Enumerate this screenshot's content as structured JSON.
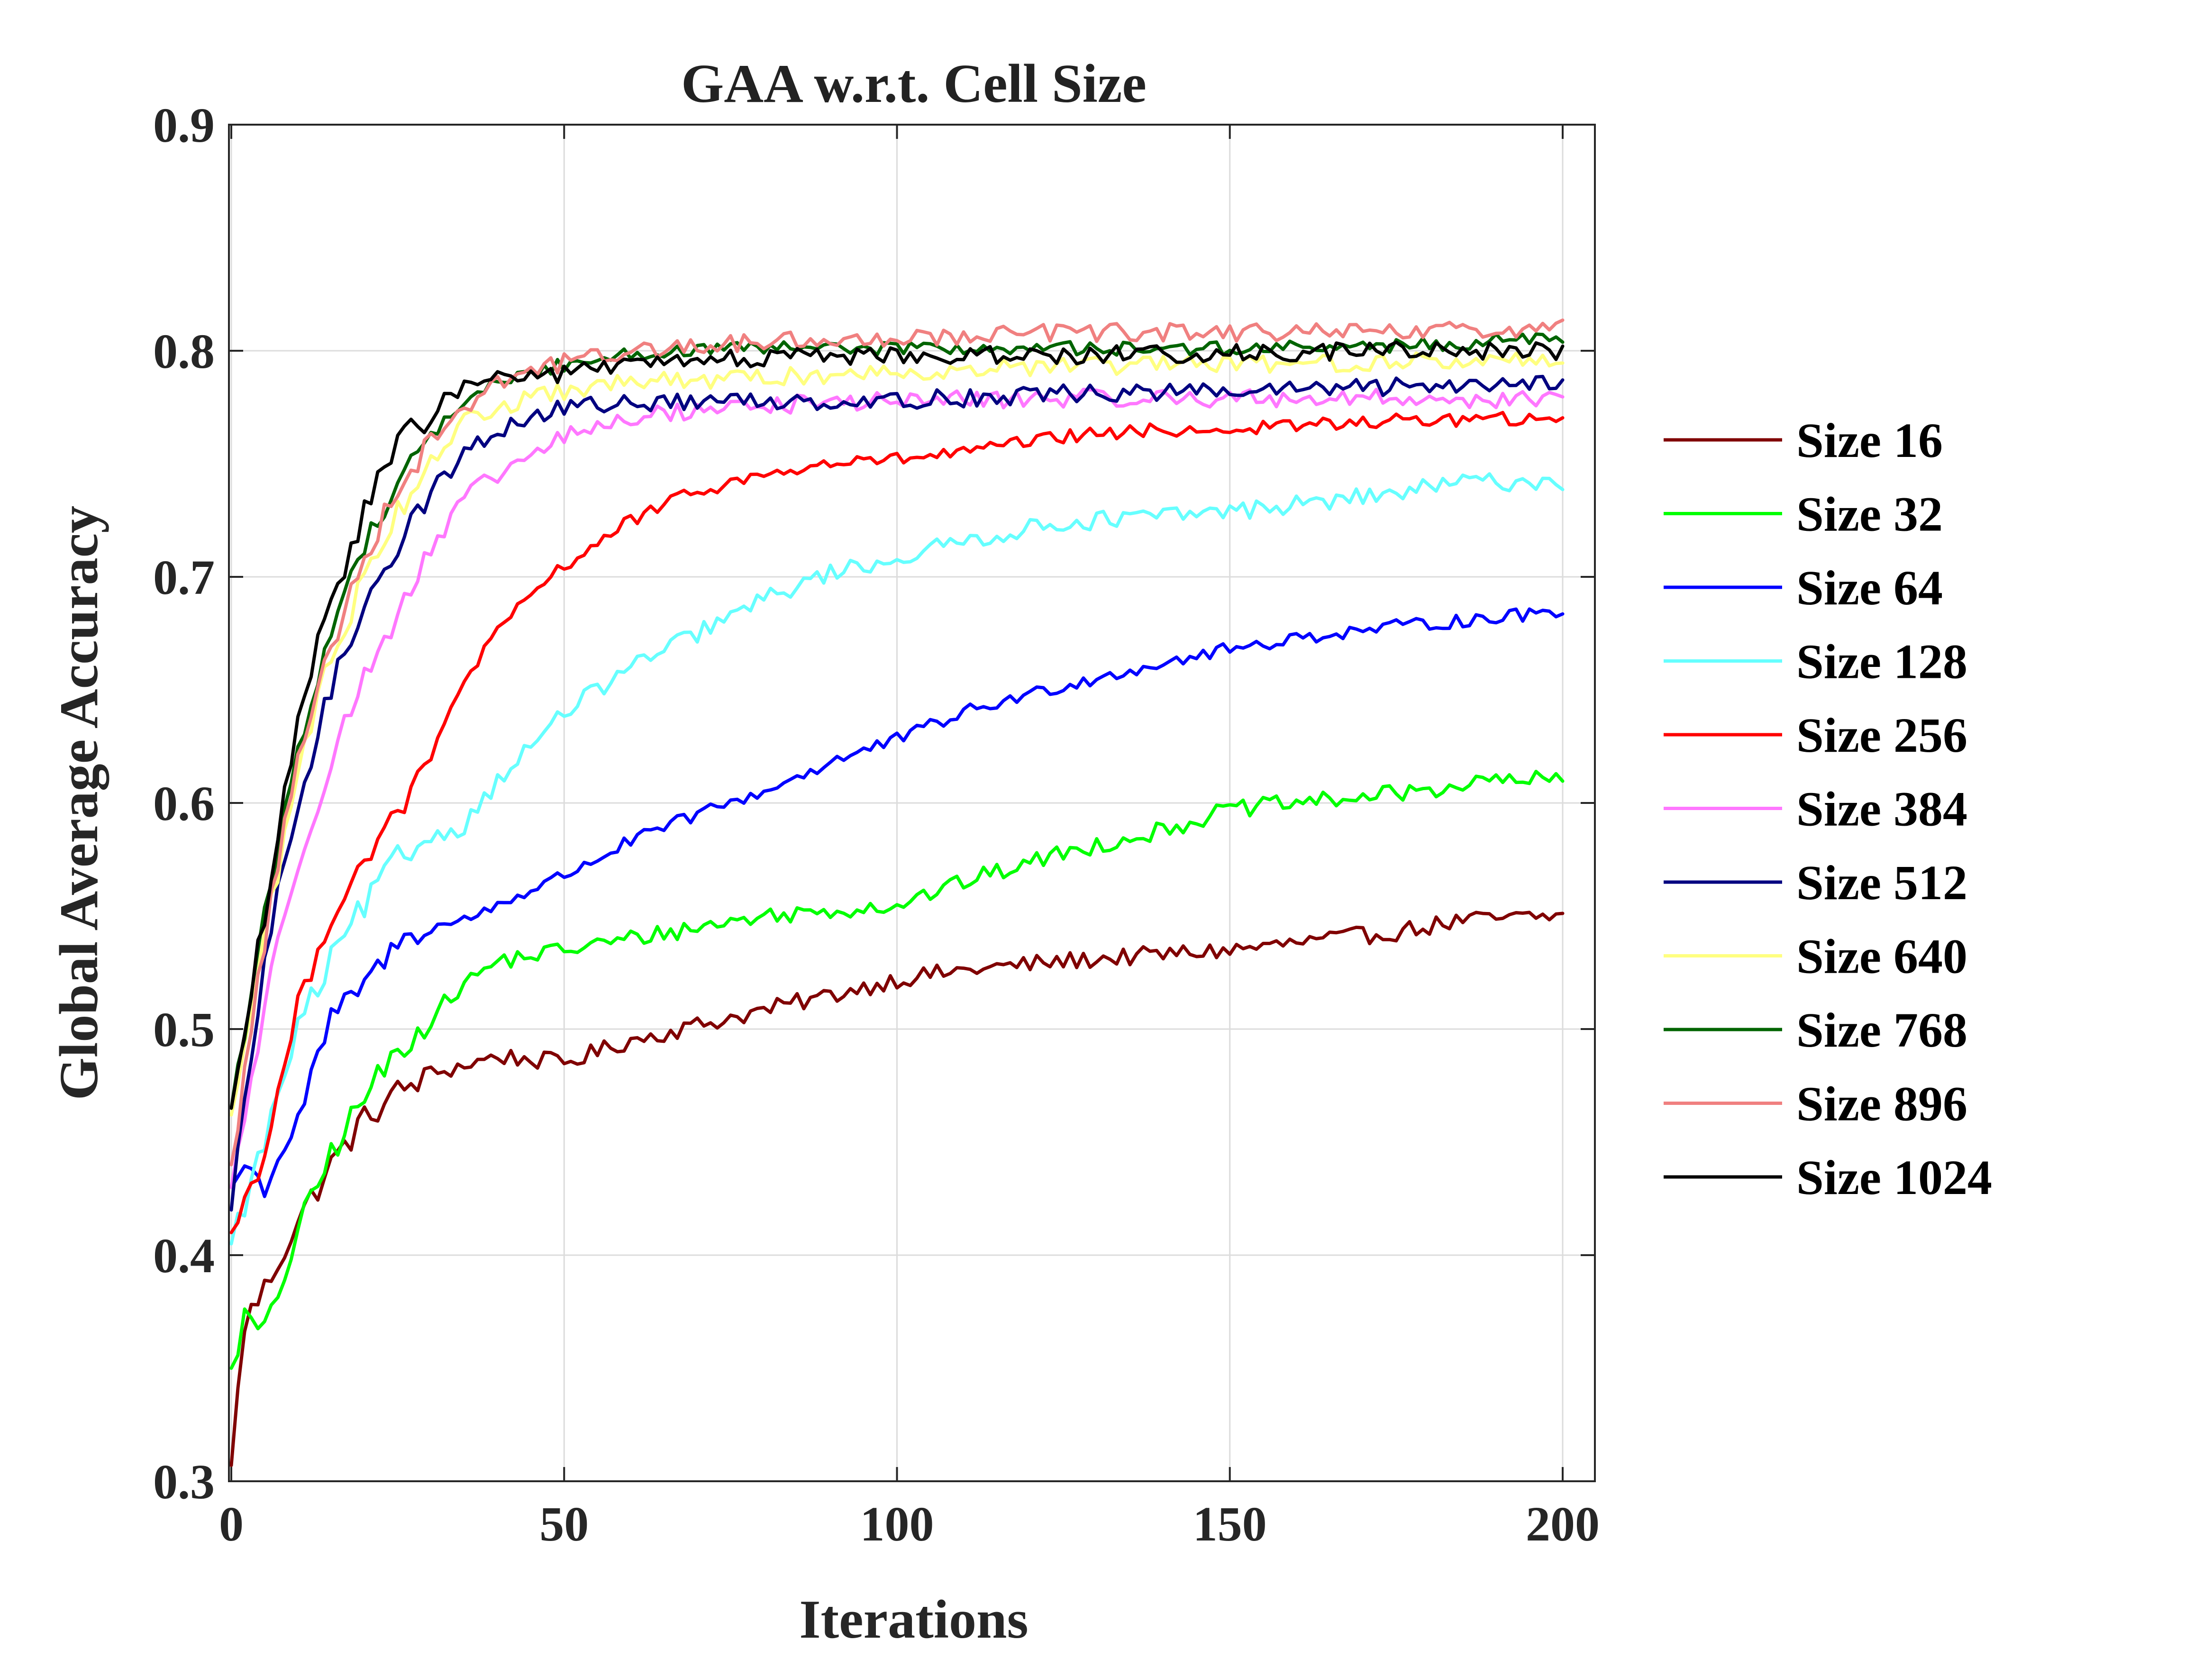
{
  "chart_data": {
    "type": "line",
    "title": "GAA w.r.t. Cell Size",
    "xlabel": "Iterations",
    "ylabel": "Global Average Accuracy",
    "xlim": [
      0,
      200
    ],
    "ylim": [
      0.3,
      0.9
    ],
    "xticks": [
      0,
      50,
      100,
      150,
      200
    ],
    "xtick_labels": [
      "0",
      "50",
      "100",
      "150",
      "200"
    ],
    "yticks": [
      0.3,
      0.4,
      0.5,
      0.6,
      0.7,
      0.8,
      0.9
    ],
    "ytick_labels": [
      "0.3",
      "0.4",
      "0.5",
      "0.6",
      "0.7",
      "0.8",
      "0.9"
    ],
    "grid": true,
    "legend_position": "right",
    "series": [
      {
        "name": "Size 16",
        "color": "#800000",
        "noise": 0.004,
        "points": [
          [
            0,
            0.307
          ],
          [
            2,
            0.37
          ],
          [
            5,
            0.385
          ],
          [
            10,
            0.415
          ],
          [
            15,
            0.44
          ],
          [
            20,
            0.46
          ],
          [
            25,
            0.472
          ],
          [
            30,
            0.48
          ],
          [
            40,
            0.488
          ],
          [
            50,
            0.485
          ],
          [
            60,
            0.495
          ],
          [
            75,
            0.505
          ],
          [
            90,
            0.515
          ],
          [
            100,
            0.522
          ],
          [
            110,
            0.526
          ],
          [
            125,
            0.53
          ],
          [
            140,
            0.533
          ],
          [
            150,
            0.535
          ],
          [
            160,
            0.538
          ],
          [
            175,
            0.543
          ],
          [
            185,
            0.548
          ],
          [
            200,
            0.55
          ]
        ]
      },
      {
        "name": "Size 32",
        "color": "#00ff00",
        "noise": 0.004,
        "points": [
          [
            0,
            0.35
          ],
          [
            2,
            0.372
          ],
          [
            5,
            0.365
          ],
          [
            10,
            0.41
          ],
          [
            15,
            0.445
          ],
          [
            20,
            0.47
          ],
          [
            25,
            0.49
          ],
          [
            30,
            0.505
          ],
          [
            35,
            0.52
          ],
          [
            40,
            0.53
          ],
          [
            50,
            0.535
          ],
          [
            60,
            0.54
          ],
          [
            70,
            0.545
          ],
          [
            80,
            0.55
          ],
          [
            100,
            0.555
          ],
          [
            110,
            0.565
          ],
          [
            125,
            0.578
          ],
          [
            140,
            0.588
          ],
          [
            150,
            0.597
          ],
          [
            160,
            0.6
          ],
          [
            175,
            0.604
          ],
          [
            190,
            0.61
          ],
          [
            200,
            0.61
          ]
        ]
      },
      {
        "name": "Size 64",
        "color": "#0000ff",
        "noise": 0.003,
        "points": [
          [
            0,
            0.43
          ],
          [
            2,
            0.44
          ],
          [
            5,
            0.43
          ],
          [
            10,
            0.46
          ],
          [
            15,
            0.505
          ],
          [
            20,
            0.52
          ],
          [
            25,
            0.538
          ],
          [
            30,
            0.545
          ],
          [
            35,
            0.548
          ],
          [
            40,
            0.555
          ],
          [
            50,
            0.568
          ],
          [
            60,
            0.583
          ],
          [
            70,
            0.595
          ],
          [
            80,
            0.605
          ],
          [
            90,
            0.618
          ],
          [
            100,
            0.628
          ],
          [
            110,
            0.64
          ],
          [
            125,
            0.652
          ],
          [
            140,
            0.662
          ],
          [
            150,
            0.668
          ],
          [
            160,
            0.673
          ],
          [
            175,
            0.678
          ],
          [
            190,
            0.682
          ],
          [
            200,
            0.685
          ]
        ]
      },
      {
        "name": "Size 128",
        "color": "#66ffff",
        "noise": 0.004,
        "points": [
          [
            0,
            0.405
          ],
          [
            5,
            0.45
          ],
          [
            10,
            0.5
          ],
          [
            15,
            0.53
          ],
          [
            20,
            0.555
          ],
          [
            25,
            0.575
          ],
          [
            30,
            0.585
          ],
          [
            35,
            0.59
          ],
          [
            40,
            0.61
          ],
          [
            50,
            0.64
          ],
          [
            60,
            0.66
          ],
          [
            70,
            0.675
          ],
          [
            80,
            0.69
          ],
          [
            90,
            0.702
          ],
          [
            100,
            0.708
          ],
          [
            110,
            0.716
          ],
          [
            125,
            0.724
          ],
          [
            140,
            0.727
          ],
          [
            150,
            0.729
          ],
          [
            160,
            0.732
          ],
          [
            175,
            0.737
          ],
          [
            185,
            0.742
          ],
          [
            200,
            0.742
          ]
        ]
      },
      {
        "name": "Size 256",
        "color": "#ff0000",
        "noise": 0.003,
        "points": [
          [
            0,
            0.41
          ],
          [
            5,
            0.445
          ],
          [
            10,
            0.51
          ],
          [
            15,
            0.55
          ],
          [
            20,
            0.575
          ],
          [
            25,
            0.595
          ],
          [
            30,
            0.62
          ],
          [
            35,
            0.655
          ],
          [
            40,
            0.675
          ],
          [
            45,
            0.692
          ],
          [
            50,
            0.705
          ],
          [
            60,
            0.725
          ],
          [
            70,
            0.738
          ],
          [
            80,
            0.745
          ],
          [
            90,
            0.75
          ],
          [
            100,
            0.752
          ],
          [
            110,
            0.755
          ],
          [
            125,
            0.762
          ],
          [
            140,
            0.765
          ],
          [
            150,
            0.765
          ],
          [
            160,
            0.767
          ],
          [
            175,
            0.769
          ],
          [
            190,
            0.77
          ],
          [
            200,
            0.768
          ]
        ]
      },
      {
        "name": "Size 384",
        "color": "#ff77ff",
        "noise": 0.004,
        "points": [
          [
            0,
            0.43
          ],
          [
            5,
            0.51
          ],
          [
            10,
            0.575
          ],
          [
            15,
            0.62
          ],
          [
            20,
            0.655
          ],
          [
            25,
            0.685
          ],
          [
            30,
            0.71
          ],
          [
            35,
            0.735
          ],
          [
            40,
            0.745
          ],
          [
            50,
            0.762
          ],
          [
            60,
            0.77
          ],
          [
            70,
            0.774
          ],
          [
            80,
            0.776
          ],
          [
            100,
            0.778
          ],
          [
            125,
            0.779
          ],
          [
            150,
            0.779
          ],
          [
            175,
            0.779
          ],
          [
            200,
            0.778
          ]
        ]
      },
      {
        "name": "Size 512",
        "color": "#000080",
        "noise": 0.004,
        "points": [
          [
            0,
            0.42
          ],
          [
            5,
            0.53
          ],
          [
            10,
            0.6
          ],
          [
            15,
            0.65
          ],
          [
            20,
            0.69
          ],
          [
            25,
            0.715
          ],
          [
            30,
            0.737
          ],
          [
            35,
            0.755
          ],
          [
            40,
            0.765
          ],
          [
            50,
            0.775
          ],
          [
            60,
            0.777
          ],
          [
            80,
            0.778
          ],
          [
            100,
            0.778
          ],
          [
            125,
            0.781
          ],
          [
            150,
            0.782
          ],
          [
            175,
            0.784
          ],
          [
            200,
            0.787
          ]
        ]
      },
      {
        "name": "Size 640",
        "color": "#ffff80",
        "noise": 0.004,
        "points": [
          [
            0,
            0.462
          ],
          [
            5,
            0.54
          ],
          [
            10,
            0.615
          ],
          [
            15,
            0.665
          ],
          [
            20,
            0.7
          ],
          [
            25,
            0.73
          ],
          [
            30,
            0.752
          ],
          [
            35,
            0.768
          ],
          [
            40,
            0.775
          ],
          [
            50,
            0.782
          ],
          [
            60,
            0.786
          ],
          [
            80,
            0.788
          ],
          [
            100,
            0.791
          ],
          [
            125,
            0.793
          ],
          [
            150,
            0.794
          ],
          [
            175,
            0.795
          ],
          [
            200,
            0.796
          ]
        ]
      },
      {
        "name": "Size 768",
        "color": "#006400",
        "noise": 0.003,
        "points": [
          [
            0,
            0.465
          ],
          [
            5,
            0.55
          ],
          [
            10,
            0.625
          ],
          [
            15,
            0.675
          ],
          [
            20,
            0.715
          ],
          [
            25,
            0.742
          ],
          [
            30,
            0.762
          ],
          [
            35,
            0.778
          ],
          [
            40,
            0.786
          ],
          [
            50,
            0.794
          ],
          [
            60,
            0.799
          ],
          [
            80,
            0.801
          ],
          [
            100,
            0.801
          ],
          [
            125,
            0.801
          ],
          [
            150,
            0.801
          ],
          [
            175,
            0.802
          ],
          [
            200,
            0.806
          ]
        ]
      },
      {
        "name": "Size 896",
        "color": "#f08080",
        "noise": 0.004,
        "points": [
          [
            0,
            0.44
          ],
          [
            5,
            0.54
          ],
          [
            10,
            0.62
          ],
          [
            15,
            0.67
          ],
          [
            20,
            0.71
          ],
          [
            25,
            0.74
          ],
          [
            30,
            0.76
          ],
          [
            35,
            0.775
          ],
          [
            40,
            0.787
          ],
          [
            50,
            0.795
          ],
          [
            60,
            0.8
          ],
          [
            80,
            0.804
          ],
          [
            100,
            0.806
          ],
          [
            125,
            0.808
          ],
          [
            150,
            0.808
          ],
          [
            175,
            0.808
          ],
          [
            200,
            0.81
          ]
        ]
      },
      {
        "name": "Size 1024",
        "color": "#000000",
        "noise": 0.004,
        "points": [
          [
            0,
            0.465
          ],
          [
            5,
            0.55
          ],
          [
            10,
            0.635
          ],
          [
            15,
            0.69
          ],
          [
            20,
            0.73
          ],
          [
            25,
            0.758
          ],
          [
            30,
            0.772
          ],
          [
            35,
            0.785
          ],
          [
            40,
            0.788
          ],
          [
            50,
            0.79
          ],
          [
            60,
            0.794
          ],
          [
            80,
            0.797
          ],
          [
            100,
            0.798
          ],
          [
            125,
            0.798
          ],
          [
            150,
            0.799
          ],
          [
            175,
            0.8
          ],
          [
            200,
            0.8
          ]
        ]
      }
    ]
  }
}
